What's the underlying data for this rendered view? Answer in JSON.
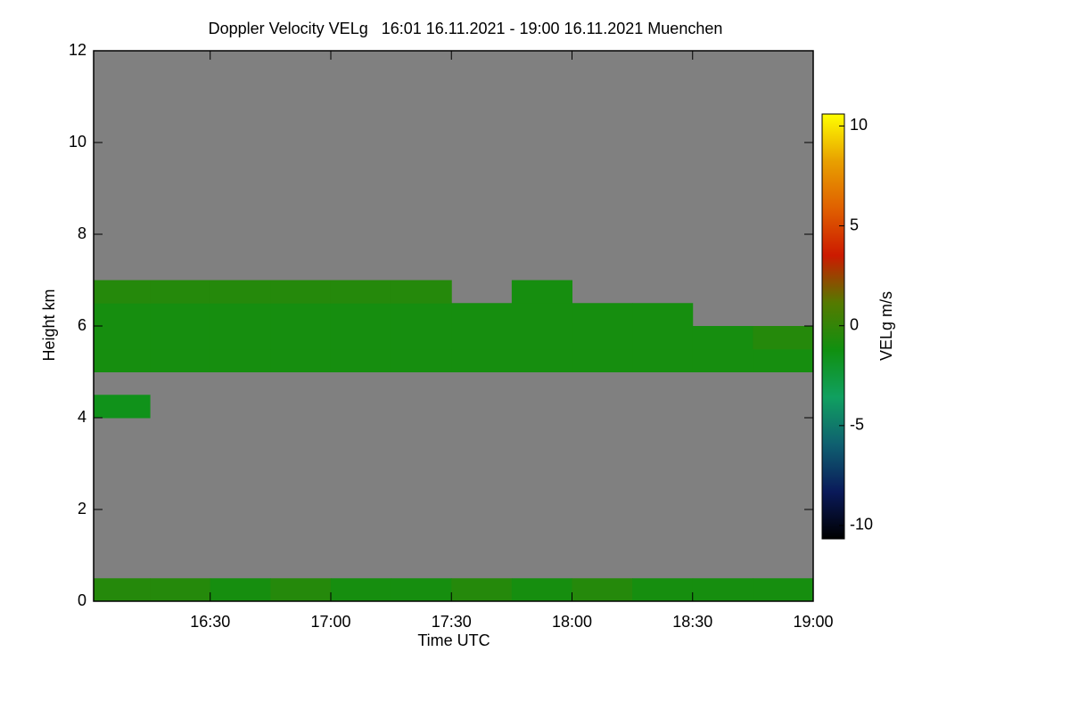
{
  "chart_data": {
    "type": "heatmap",
    "title": "Doppler Velocity VELg   16:01 16.11.2021 - 19:00 16.11.2021 Muenchen",
    "xlabel": "Time UTC",
    "ylabel": "Height km",
    "xlim": [
      16.0167,
      19.0
    ],
    "ylim": [
      0,
      12
    ],
    "xticks": [
      {
        "value": 16.5,
        "label": "16:30"
      },
      {
        "value": 17.0,
        "label": "17:00"
      },
      {
        "value": 17.5,
        "label": "17:30"
      },
      {
        "value": 18.0,
        "label": "18:00"
      },
      {
        "value": 18.5,
        "label": "18:30"
      },
      {
        "value": 19.0,
        "label": "19:00"
      }
    ],
    "yticks": [
      0,
      2,
      4,
      6,
      8,
      10,
      12
    ],
    "x_edges": [
      16.0167,
      16.25,
      16.5,
      16.75,
      17.0,
      17.25,
      17.5,
      17.75,
      18.0,
      18.25,
      18.5,
      18.75,
      19.0
    ],
    "y_edges": [
      0,
      0.5,
      1,
      1.5,
      2,
      2.5,
      3,
      3.5,
      4,
      4.5,
      5,
      5.5,
      6,
      6.5,
      7,
      7.5,
      8,
      8.5,
      9,
      9.5,
      10,
      10.5,
      11,
      11.5,
      12
    ],
    "z": [
      [
        -0.5,
        -0.5,
        -1,
        -0.5,
        -1,
        -1,
        -0.5,
        -1,
        -0.5,
        -1,
        -1,
        -1
      ],
      [
        null,
        null,
        null,
        null,
        null,
        null,
        null,
        null,
        null,
        null,
        null,
        null
      ],
      [
        null,
        null,
        null,
        null,
        null,
        null,
        null,
        null,
        null,
        null,
        null,
        null
      ],
      [
        null,
        null,
        null,
        null,
        null,
        null,
        null,
        null,
        null,
        null,
        null,
        null
      ],
      [
        null,
        null,
        null,
        null,
        null,
        null,
        null,
        null,
        null,
        null,
        null,
        null
      ],
      [
        null,
        null,
        null,
        null,
        null,
        null,
        null,
        null,
        null,
        null,
        null,
        null
      ],
      [
        null,
        null,
        null,
        null,
        null,
        null,
        null,
        null,
        null,
        null,
        null,
        null
      ],
      [
        null,
        null,
        null,
        null,
        null,
        null,
        null,
        null,
        null,
        null,
        null,
        null
      ],
      [
        -1.5,
        null,
        null,
        null,
        null,
        null,
        null,
        null,
        null,
        null,
        null,
        null
      ],
      [
        null,
        null,
        null,
        null,
        null,
        null,
        null,
        null,
        null,
        null,
        null,
        null
      ],
      [
        -1,
        -1,
        -1,
        -1,
        -1,
        -1,
        -1,
        -1,
        -1,
        -1,
        -1,
        -1
      ],
      [
        -1,
        -1,
        -1,
        -1,
        -1,
        -1,
        -1,
        -1,
        -1,
        -1,
        -1,
        -0.5
      ],
      [
        -1,
        -1,
        -1,
        -1,
        -1,
        -1,
        -1,
        -1,
        -1,
        -1,
        null,
        null
      ],
      [
        -0.5,
        -0.5,
        -0.5,
        -0.5,
        -0.5,
        -0.5,
        null,
        -1,
        null,
        null,
        null,
        null
      ],
      [
        null,
        null,
        null,
        null,
        null,
        null,
        null,
        null,
        null,
        null,
        null,
        null
      ],
      [
        null,
        null,
        null,
        null,
        null,
        null,
        null,
        null,
        null,
        null,
        null,
        null
      ],
      [
        null,
        null,
        null,
        null,
        null,
        null,
        null,
        null,
        null,
        null,
        null,
        null
      ],
      [
        null,
        null,
        null,
        null,
        null,
        null,
        null,
        null,
        null,
        null,
        null,
        null
      ],
      [
        null,
        null,
        null,
        null,
        null,
        null,
        null,
        null,
        null,
        null,
        null,
        null
      ],
      [
        null,
        null,
        null,
        null,
        null,
        null,
        null,
        null,
        null,
        null,
        null,
        null
      ],
      [
        null,
        null,
        null,
        null,
        null,
        null,
        null,
        null,
        null,
        null,
        null,
        null
      ],
      [
        null,
        null,
        null,
        null,
        null,
        null,
        null,
        null,
        null,
        null,
        null,
        null
      ],
      [
        null,
        null,
        null,
        null,
        null,
        null,
        null,
        null,
        null,
        null,
        null,
        null
      ],
      [
        null,
        null,
        null,
        null,
        null,
        null,
        null,
        null,
        null,
        null,
        null,
        null
      ]
    ],
    "background": "#808080",
    "colorbar": {
      "label": "VELg m/s",
      "lim": [
        -10.67,
        10.6
      ],
      "ticks": [
        10,
        5,
        0,
        -5,
        -10
      ],
      "colormap": [
        "#000000",
        "#0a1a5a",
        "#0f6070",
        "#10a060",
        "#109010",
        "#557a00",
        "#cc1a00",
        "#e06000",
        "#e8a000",
        "#ffff00"
      ]
    }
  }
}
